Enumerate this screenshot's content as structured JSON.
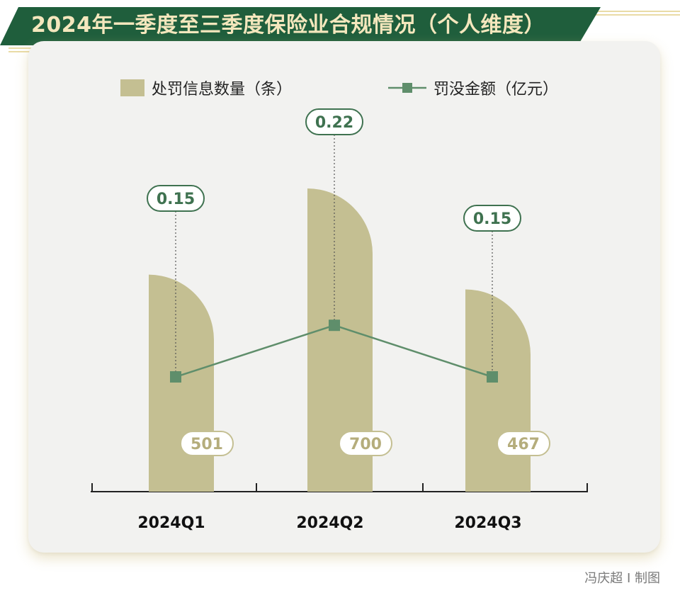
{
  "title": "2024年一季度至三季度保险业合规情况（个人维度）",
  "credit": "冯庆超 I 制图",
  "colors": {
    "banner": "#1f5e3c",
    "banner_text": "#f4e7bd",
    "bar": "#c4bf92",
    "line": "#5f8e6b",
    "label_green": "#3f7250",
    "label_tan": "#b5ad7c",
    "axis": "#222222"
  },
  "chart_data": {
    "type": "bar+line",
    "categories": [
      "2024Q1",
      "2024Q2",
      "2024Q3"
    ],
    "series": [
      {
        "name": "处罚信息数量（条）",
        "type": "bar",
        "values": [
          501,
          700,
          467
        ]
      },
      {
        "name": "罚没金额（亿元）",
        "type": "line",
        "values": [
          0.15,
          0.22,
          0.15
        ]
      }
    ],
    "legend": "top-center",
    "grid": false
  }
}
